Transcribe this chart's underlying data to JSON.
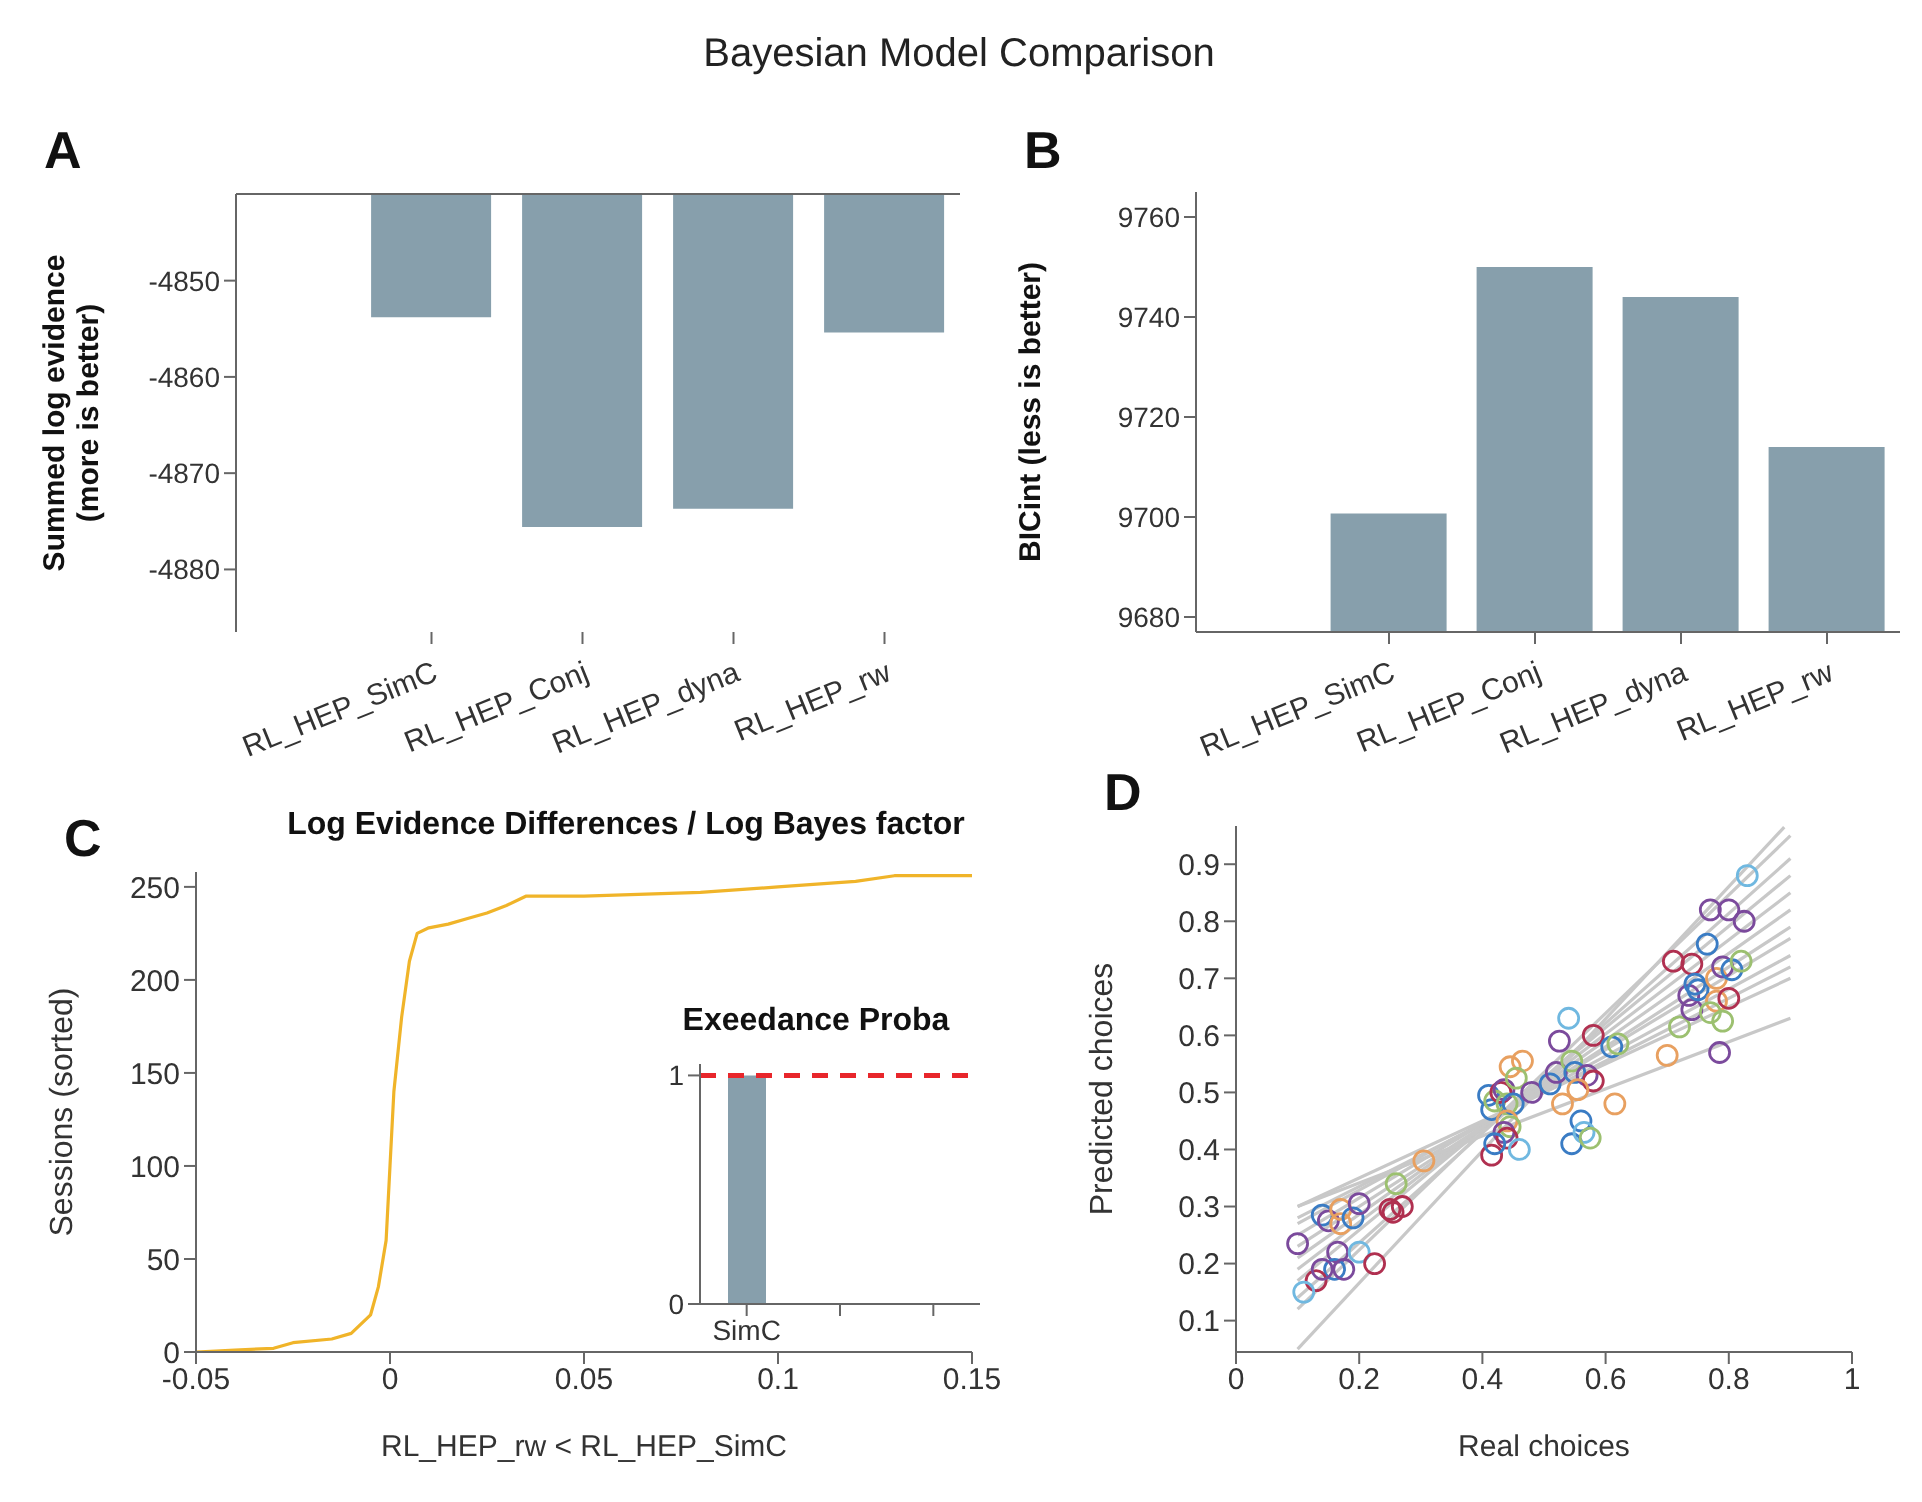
{
  "chart_data": [
    {
      "type": "bar",
      "title": "Bayesian Model Comparison",
      "annotations": [
        "A"
      ],
      "ylabel": "Summed log evidence\n(more is better)",
      "categories": [
        "RL_HEP_SimC",
        "RL_HEP_Conj",
        "RL_HEP_dyna",
        "RL_HEP_rw"
      ],
      "values": [
        -4853.8,
        -4875.6,
        -4873.7,
        -4855.4
      ],
      "color": "#879fac",
      "ylim": [
        -4886.5,
        -4841
      ],
      "yticks": [
        -4880,
        -4870,
        -4860,
        -4850
      ],
      "grid": false,
      "legend": false
    },
    {
      "type": "bar",
      "annotations": [
        "B"
      ],
      "ylabel": "BICint (less is better)",
      "categories": [
        "RL_HEP_SimC",
        "RL_HEP_Conj",
        "RL_HEP_dyna",
        "RL_HEP_rw"
      ],
      "values": [
        9700.7,
        9750,
        9744,
        9714
      ],
      "color": "#879fac",
      "ylim": [
        9677,
        9765
      ],
      "yticks": [
        9680,
        9700,
        9720,
        9740,
        9760
      ],
      "grid": false,
      "legend": false
    },
    {
      "type": "line",
      "annotations": [
        "C"
      ],
      "title": "Log Evidence Differences / Log Bayes factor",
      "xlabel": "RL_HEP_rw < RL_HEP_SimC",
      "ylabel": "Sessions (sorted)",
      "series": [
        {
          "color": "#f0b429",
          "x": [
            -0.05,
            -0.04,
            -0.03,
            -0.025,
            -0.015,
            -0.01,
            -0.005,
            -0.003,
            -0.001,
            0,
            0.001,
            0.003,
            0.005,
            0.007,
            0.01,
            0.015,
            0.02,
            0.025,
            0.03,
            0.035,
            0.05,
            0.08,
            0.1,
            0.12,
            0.13,
            0.15
          ],
          "values": [
            0,
            1,
            2,
            5,
            7,
            10,
            20,
            35,
            60,
            100,
            140,
            180,
            210,
            225,
            228,
            230,
            233,
            236,
            240,
            245,
            245,
            247,
            250,
            253,
            256,
            256
          ]
        }
      ],
      "xlim": [
        -0.05,
        0.15
      ],
      "xticks": [
        -0.05,
        0,
        0.05,
        0.1,
        0.15
      ],
      "ylim": [
        0,
        258
      ],
      "yticks": [
        0,
        50,
        100,
        150,
        200,
        250
      ],
      "marker": "none",
      "line_style": "solid",
      "grid": false,
      "legend": false
    },
    {
      "type": "bar",
      "title": "Exeedance Proba",
      "categories": [
        "SimC",
        null,
        null
      ],
      "values": [
        1,
        null,
        null
      ],
      "color": "#879fac",
      "ylim": [
        0,
        1.05
      ],
      "yticks": [
        0,
        1
      ],
      "ref_lines": [
        {
          "axis": "y",
          "value": 1,
          "color": "#e8262b",
          "line_style": "dashed"
        }
      ],
      "grid": false,
      "legend": false
    },
    {
      "type": "scatter",
      "annotations": [
        "D"
      ],
      "xlabel": "Real choices",
      "ylabel": "Predicted choices",
      "xlim": [
        0,
        1
      ],
      "xticks": [
        0,
        0.2,
        0.4,
        0.6,
        0.8,
        1
      ],
      "ylim": [
        0.045,
        0.967
      ],
      "yticks": [
        0.1,
        0.2,
        0.3,
        0.4,
        0.5,
        0.6,
        0.7,
        0.8,
        0.9
      ],
      "grid": false,
      "legend": false,
      "series": [
        {
          "type": "line",
          "color": "#c8c8c8",
          "x": [
            0.1,
            0.89
          ],
          "values": [
            0.05,
            0.965
          ]
        },
        {
          "type": "line",
          "color": "#c8c8c8",
          "x": [
            0.1,
            0.9
          ],
          "values": [
            0.12,
            0.95
          ]
        },
        {
          "type": "line",
          "color": "#c8c8c8",
          "x": [
            0.1,
            0.9
          ],
          "values": [
            0.14,
            0.91
          ]
        },
        {
          "type": "line",
          "color": "#c8c8c8",
          "x": [
            0.1,
            0.9
          ],
          "values": [
            0.17,
            0.88
          ]
        },
        {
          "type": "line",
          "color": "#c8c8c8",
          "x": [
            0.1,
            0.9
          ],
          "values": [
            0.19,
            0.85
          ]
        },
        {
          "type": "line",
          "color": "#c8c8c8",
          "x": [
            0.1,
            0.9
          ],
          "values": [
            0.21,
            0.82
          ]
        },
        {
          "type": "line",
          "color": "#c8c8c8",
          "x": [
            0.1,
            0.9
          ],
          "values": [
            0.23,
            0.79
          ]
        },
        {
          "type": "line",
          "color": "#c8c8c8",
          "x": [
            0.1,
            0.9
          ],
          "values": [
            0.25,
            0.77
          ]
        },
        {
          "type": "line",
          "color": "#c8c8c8",
          "x": [
            0.1,
            0.9
          ],
          "values": [
            0.27,
            0.74
          ]
        },
        {
          "type": "line",
          "color": "#c8c8c8",
          "x": [
            0.1,
            0.9
          ],
          "values": [
            0.28,
            0.72
          ]
        },
        {
          "type": "line",
          "color": "#c8c8c8",
          "x": [
            0.1,
            0.9
          ],
          "values": [
            0.3,
            0.7
          ]
        },
        {
          "type": "line",
          "color": "#c8c8c8",
          "x": [
            0.1,
            0.9
          ],
          "values": [
            0.3,
            0.63
          ]
        },
        {
          "type": "scatter",
          "marker": "circle",
          "x": [
            0.1,
            0.14,
            0.15,
            0.17,
            0.17,
            0.19,
            0.2,
            0.165,
            0.16,
            0.175,
            0.13,
            0.14,
            0.11,
            0.2,
            0.225,
            0.25,
            0.255,
            0.27,
            0.26,
            0.305,
            0.41,
            0.415,
            0.42,
            0.43,
            0.435,
            0.44,
            0.45,
            0.445,
            0.465,
            0.455,
            0.44,
            0.445,
            0.435,
            0.44,
            0.415,
            0.42,
            0.46,
            0.48,
            0.51,
            0.52,
            0.525,
            0.54,
            0.545,
            0.55,
            0.53,
            0.545,
            0.56,
            0.565,
            0.575,
            0.57,
            0.58,
            0.58,
            0.555,
            0.61,
            0.62,
            0.615,
            0.7,
            0.71,
            0.72,
            0.735,
            0.74,
            0.74,
            0.745,
            0.75,
            0.765,
            0.77,
            0.78,
            0.78,
            0.785,
            0.79,
            0.79,
            0.8,
            0.8,
            0.805,
            0.825,
            0.83,
            0.82,
            0.77
          ],
          "values": [
            0.235,
            0.285,
            0.275,
            0.27,
            0.295,
            0.28,
            0.305,
            0.22,
            0.19,
            0.19,
            0.17,
            0.19,
            0.15,
            0.22,
            0.2,
            0.295,
            0.29,
            0.3,
            0.34,
            0.38,
            0.495,
            0.47,
            0.485,
            0.5,
            0.505,
            0.48,
            0.48,
            0.545,
            0.555,
            0.525,
            0.45,
            0.44,
            0.43,
            0.42,
            0.39,
            0.41,
            0.4,
            0.5,
            0.515,
            0.535,
            0.59,
            0.63,
            0.555,
            0.535,
            0.48,
            0.41,
            0.45,
            0.43,
            0.42,
            0.53,
            0.6,
            0.52,
            0.505,
            0.58,
            0.585,
            0.48,
            0.565,
            0.73,
            0.615,
            0.67,
            0.645,
            0.725,
            0.69,
            0.68,
            0.76,
            0.82,
            0.7,
            0.66,
            0.57,
            0.625,
            0.72,
            0.82,
            0.665,
            0.715,
            0.8,
            0.88,
            0.73,
            0.64
          ],
          "colors": [
            "#7b4a9c",
            "#3a7cc4",
            "#7b4a9c",
            "#e8a060",
            "#e8a060",
            "#3a7cc4",
            "#7b4a9c",
            "#7b4a9c",
            "#3a7cc4",
            "#7b4a9c",
            "#b03050",
            "#7b4a9c",
            "#70b8e0",
            "#70b8e0",
            "#b03050",
            "#b03050",
            "#b03050",
            "#b03050",
            "#9cc070",
            "#e8a060",
            "#3a7cc4",
            "#3a7cc4",
            "#9cc070",
            "#b03050",
            "#7b4a9c",
            "#9cc070",
            "#3a7cc4",
            "#e8a060",
            "#e8a060",
            "#9cc070",
            "#e8a060",
            "#9cc070",
            "#7b4a9c",
            "#b03050",
            "#b03050",
            "#3a7cc4",
            "#70b8e0",
            "#7b4a9c",
            "#3a7cc4",
            "#7b4a9c",
            "#7b4a9c",
            "#70b8e0",
            "#9cc070",
            "#3a7cc4",
            "#e8a060",
            "#3a7cc4",
            "#3a7cc4",
            "#70b8e0",
            "#9cc070",
            "#7b4a9c",
            "#b03050",
            "#b03050",
            "#e8a060",
            "#3a7cc4",
            "#9cc070",
            "#e8a060",
            "#e8a060",
            "#b03050",
            "#9cc070",
            "#7b4a9c",
            "#7b4a9c",
            "#b03050",
            "#3a7cc4",
            "#3a7cc4",
            "#3a7cc4",
            "#7b4a9c",
            "#e8a060",
            "#e8a060",
            "#7b4a9c",
            "#9cc070",
            "#7b4a9c",
            "#7b4a9c",
            "#b03050",
            "#3a7cc4",
            "#7b4a9c",
            "#70b8e0",
            "#9cc070",
            "#9cc070"
          ]
        }
      ]
    }
  ]
}
